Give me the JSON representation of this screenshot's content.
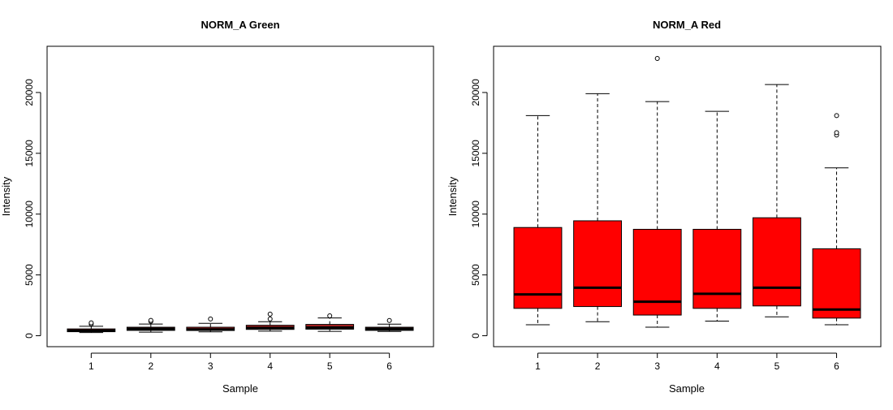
{
  "chart_data": [
    {
      "type": "box",
      "title": "NORM_A Green",
      "xlabel": "Sample",
      "ylabel": "Intensity",
      "ylim": [
        -900,
        23800
      ],
      "yticks": [
        0,
        5000,
        10000,
        15000,
        20000
      ],
      "categories": [
        "1",
        "2",
        "3",
        "4",
        "5",
        "6"
      ],
      "box_fill": "#b22222",
      "boxes": [
        {
          "whisker_low": 260,
          "q1": 330,
          "median": 420,
          "q3": 560,
          "whisker_high": 780,
          "outliers": [
            960,
            1060
          ]
        },
        {
          "whisker_low": 290,
          "q1": 440,
          "median": 560,
          "q3": 700,
          "whisker_high": 960,
          "outliers": [
            1180,
            1260
          ]
        },
        {
          "whisker_low": 320,
          "q1": 430,
          "median": 520,
          "q3": 700,
          "whisker_high": 1020,
          "outliers": [
            1380
          ]
        },
        {
          "whisker_low": 380,
          "q1": 520,
          "median": 640,
          "q3": 860,
          "whisker_high": 1150,
          "outliers": [
            1380,
            1780
          ]
        },
        {
          "whisker_low": 360,
          "q1": 540,
          "median": 680,
          "q3": 930,
          "whisker_high": 1460,
          "outliers": [
            1640
          ]
        },
        {
          "whisker_low": 350,
          "q1": 440,
          "median": 560,
          "q3": 700,
          "whisker_high": 950,
          "outliers": [
            1250
          ]
        }
      ]
    },
    {
      "type": "box",
      "title": "NORM_A Red",
      "xlabel": "Sample",
      "ylabel": "Intensity",
      "ylim": [
        -900,
        23800
      ],
      "yticks": [
        0,
        5000,
        10000,
        15000,
        20000
      ],
      "categories": [
        "1",
        "2",
        "3",
        "4",
        "5",
        "6"
      ],
      "box_fill": "#ff0000",
      "boxes": [
        {
          "whisker_low": 900,
          "q1": 2250,
          "median": 3400,
          "q3": 8900,
          "whisker_high": 18100,
          "outliers": []
        },
        {
          "whisker_low": 1150,
          "q1": 2400,
          "median": 3950,
          "q3": 9450,
          "whisker_high": 19900,
          "outliers": []
        },
        {
          "whisker_low": 700,
          "q1": 1700,
          "median": 2800,
          "q3": 8750,
          "whisker_high": 19250,
          "outliers": [
            22800
          ]
        },
        {
          "whisker_low": 1200,
          "q1": 2250,
          "median": 3450,
          "q3": 8750,
          "whisker_high": 18450,
          "outliers": []
        },
        {
          "whisker_low": 1550,
          "q1": 2450,
          "median": 3950,
          "q3": 9700,
          "whisker_high": 20650,
          "outliers": []
        },
        {
          "whisker_low": 900,
          "q1": 1450,
          "median": 2150,
          "q3": 7150,
          "whisker_high": 13800,
          "outliers": [
            16500,
            16700,
            18100
          ]
        }
      ]
    }
  ]
}
